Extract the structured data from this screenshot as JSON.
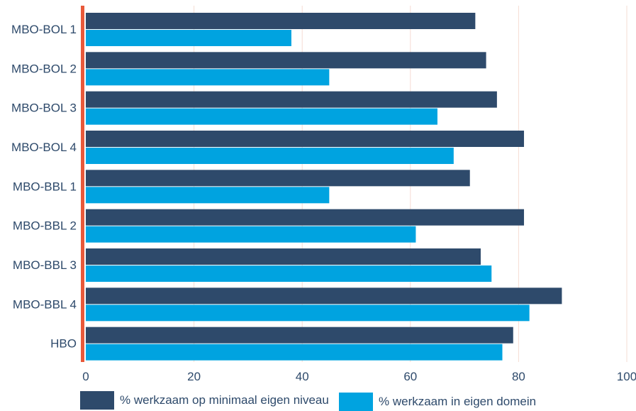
{
  "chart_data": {
    "type": "bar",
    "orientation": "horizontal",
    "categories": [
      "MBO-BOL 1",
      "MBO-BOL 2",
      "MBO-BOL 3",
      "MBO-BOL 4",
      "MBO-BBL 1",
      "MBO-BBL 2",
      "MBO-BBL 3",
      "MBO-BBL 4",
      "HBO"
    ],
    "series": [
      {
        "name": "% werkzaam op minimaal eigen niveau",
        "color": "#2e4a6b",
        "values": [
          72,
          74,
          76,
          81,
          71,
          81,
          73,
          88,
          79
        ]
      },
      {
        "name": "% werkzaam in eigen domein",
        "color": "#00a3e0",
        "values": [
          38,
          45,
          65,
          68,
          45,
          61,
          75,
          82,
          77
        ]
      }
    ],
    "x_ticks": [
      "0",
      "20",
      "40",
      "60",
      "80",
      "100"
    ],
    "xlim": [
      0,
      100
    ],
    "grid": true,
    "legend_position": "bottom",
    "axis_color": "#e8593a",
    "grid_color": "#f6dcd3",
    "title": "",
    "xlabel": "",
    "ylabel": ""
  }
}
